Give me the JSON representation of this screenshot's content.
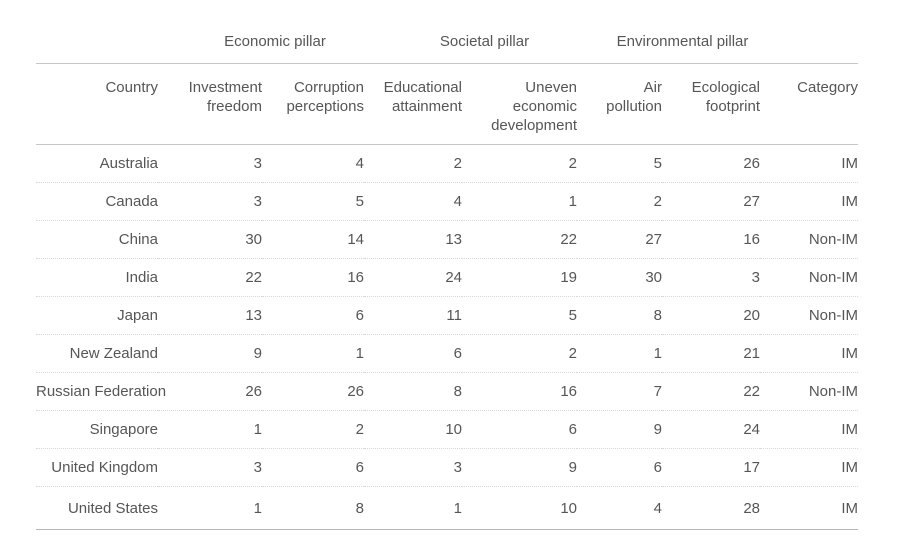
{
  "chart_data": {
    "type": "table",
    "column_groups": [
      {
        "label": "Economic pillar",
        "span": [
          "Investment freedom",
          "Corruption perceptions"
        ]
      },
      {
        "label": "Societal pillar",
        "span": [
          "Educational attainment",
          "Uneven economic development"
        ]
      },
      {
        "label": "Environmental pillar",
        "span": [
          "Air pollution",
          "Ecological footprint"
        ]
      }
    ],
    "columns": [
      "Country",
      "Investment freedom",
      "Corruption perceptions",
      "Educational attainment",
      "Uneven economic development",
      "Air pollution",
      "Ecological footprint",
      "Category"
    ],
    "rows": [
      [
        "Australia",
        3,
        4,
        2,
        2,
        5,
        26,
        "IM"
      ],
      [
        "Canada",
        3,
        5,
        4,
        1,
        2,
        27,
        "IM"
      ],
      [
        "China",
        30,
        14,
        13,
        22,
        27,
        16,
        "Non-IM"
      ],
      [
        "India",
        22,
        16,
        24,
        19,
        30,
        3,
        "Non-IM"
      ],
      [
        "Japan",
        13,
        6,
        11,
        5,
        8,
        20,
        "Non-IM"
      ],
      [
        "New Zealand",
        9,
        1,
        6,
        2,
        1,
        21,
        "IM"
      ],
      [
        "Russian Federation",
        26,
        26,
        8,
        16,
        7,
        22,
        "Non-IM"
      ],
      [
        "Singapore",
        1,
        2,
        10,
        6,
        9,
        24,
        "IM"
      ],
      [
        "United Kingdom",
        3,
        6,
        3,
        9,
        6,
        17,
        "IM"
      ],
      [
        "United States",
        1,
        8,
        1,
        10,
        4,
        28,
        "IM"
      ]
    ],
    "layout": {
      "grid": "off",
      "legend": "none"
    },
    "colors": {
      "text": "#565656",
      "solid_rule": "#c6c6c6",
      "bottom_rule": "#b6b6b6",
      "dotted_rule": "#d8d8d8",
      "background": "#ffffff"
    }
  }
}
